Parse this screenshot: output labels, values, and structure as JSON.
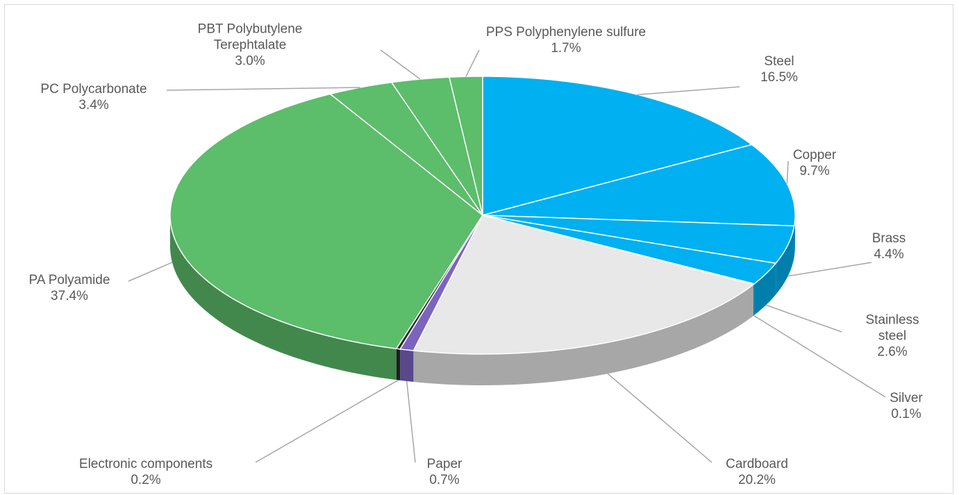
{
  "chart_data": {
    "type": "pie",
    "categories": [
      "Steel",
      "Copper",
      "Brass",
      "Stainless steel",
      "Silver",
      "Cardboard",
      "Paper",
      "Electronic components",
      "PA Polyamide",
      "PC Polycarbonate",
      "PBT Polybutylene Terephtalate",
      "PPS Polyphenylene sulfure"
    ],
    "values": [
      16.5,
      9.7,
      4.4,
      2.6,
      0.1,
      20.2,
      0.7,
      0.2,
      37.4,
      3.4,
      3.0,
      1.7
    ],
    "value_labels": [
      "16.5%",
      "9.7%",
      "4.4%",
      "2.6%",
      "0.1%",
      "20.2%",
      "0.7%",
      "0.2%",
      "37.4%",
      "3.4%",
      "3.0%",
      "1.7%"
    ],
    "colors": [
      "#00b0f0",
      "#00b0f0",
      "#00b0f0",
      "#00b0f0",
      "#00b0f0",
      "#e8e8e8",
      "#7b64c0",
      "#2b2b2b",
      "#5cbd6b",
      "#5cbd6b",
      "#5cbd6b",
      "#5cbd6b"
    ]
  }
}
